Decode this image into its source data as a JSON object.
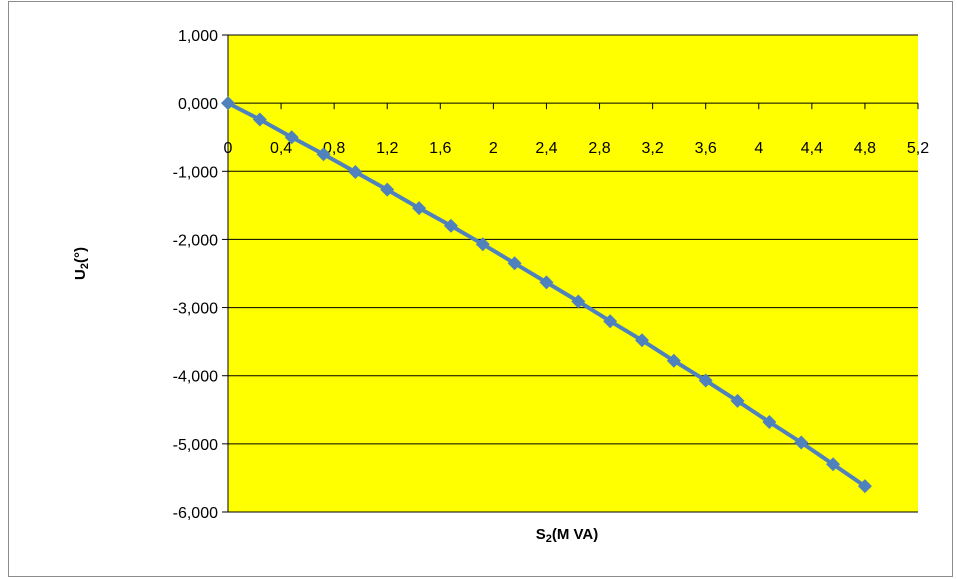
{
  "chart_data": {
    "type": "line",
    "title": "",
    "xlabel": "S",
    "xlabel_sub": "2",
    "xlabel_rest": "(M VA)",
    "ylabel": "U",
    "ylabel_sub": "2",
    "ylabel_rest": "(°)",
    "xlim": [
      0,
      5.2
    ],
    "ylim": [
      -6,
      1
    ],
    "x_ticks": [
      0,
      0.4,
      0.8,
      1.2,
      1.6,
      2,
      2.4,
      2.8,
      3.2,
      3.6,
      4,
      4.4,
      4.8,
      5.2
    ],
    "x_tick_labels": [
      "0",
      "0,4",
      "0,8",
      "1,2",
      "1,6",
      "2",
      "2,4",
      "2,8",
      "3,2",
      "3,6",
      "4",
      "4,4",
      "4,8",
      "5,2"
    ],
    "y_ticks": [
      1,
      0,
      -1,
      -2,
      -3,
      -4,
      -5,
      -6
    ],
    "y_tick_labels": [
      "1,000",
      "0,000",
      "-1,000",
      "-2,000",
      "-3,000",
      "-4,000",
      "-5,000",
      "-6,000"
    ],
    "grid": "horizontal",
    "legend": "none",
    "series": [
      {
        "marker": "diamond",
        "x": [
          0,
          0.24,
          0.48,
          0.72,
          0.96,
          1.2,
          1.44,
          1.68,
          1.92,
          2.16,
          2.4,
          2.64,
          2.88,
          3.12,
          3.36,
          3.6,
          3.84,
          4.08,
          4.32,
          4.56,
          4.8
        ],
        "values": [
          0,
          -0.24,
          -0.5,
          -0.75,
          -1.01,
          -1.27,
          -1.54,
          -1.8,
          -2.07,
          -2.35,
          -2.63,
          -2.91,
          -3.2,
          -3.48,
          -3.78,
          -4.07,
          -4.37,
          -4.68,
          -4.98,
          -5.3,
          -5.62
        ]
      }
    ]
  },
  "colors": {
    "plot_background": "#ffff00",
    "series_line": "#4f81bd",
    "gridline": "#000000",
    "frame_border": "#8c8c8c"
  }
}
